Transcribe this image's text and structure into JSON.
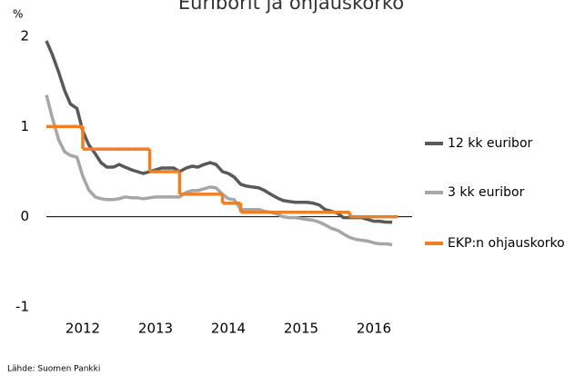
{
  "chart_data": {
    "type": "line",
    "title": "Euriborit ja ohjauskorko",
    "y_label": "%",
    "source": "Lähde: Suomen Pankki",
    "x": [
      2012.0,
      2012.08,
      2012.17,
      2012.25,
      2012.33,
      2012.42,
      2012.5,
      2012.58,
      2012.67,
      2012.75,
      2012.83,
      2012.92,
      2013.0,
      2013.08,
      2013.17,
      2013.25,
      2013.33,
      2013.42,
      2013.5,
      2013.58,
      2013.67,
      2013.75,
      2013.83,
      2013.92,
      2014.0,
      2014.08,
      2014.17,
      2014.25,
      2014.33,
      2014.42,
      2014.5,
      2014.58,
      2014.67,
      2014.75,
      2014.83,
      2014.92,
      2015.0,
      2015.08,
      2015.17,
      2015.25,
      2015.33,
      2015.42,
      2015.5,
      2015.58,
      2015.67,
      2015.75,
      2015.83,
      2015.92,
      2016.0,
      2016.08,
      2016.17,
      2016.25,
      2016.33,
      2016.42,
      2016.5,
      2016.58,
      2016.67,
      2016.75
    ],
    "series": [
      {
        "name": "12 kk euribor",
        "color": "#595959",
        "values": [
          1.95,
          1.8,
          1.6,
          1.4,
          1.25,
          1.2,
          0.95,
          0.8,
          0.7,
          0.6,
          0.55,
          0.55,
          0.58,
          0.55,
          0.52,
          0.5,
          0.48,
          0.5,
          0.52,
          0.54,
          0.54,
          0.54,
          0.5,
          0.54,
          0.56,
          0.55,
          0.58,
          0.6,
          0.58,
          0.5,
          0.48,
          0.44,
          0.36,
          0.34,
          0.33,
          0.32,
          0.29,
          0.25,
          0.21,
          0.18,
          0.17,
          0.16,
          0.16,
          0.16,
          0.15,
          0.13,
          0.08,
          0.06,
          0.04,
          -0.01,
          -0.01,
          -0.01,
          -0.01,
          -0.03,
          -0.05,
          -0.05,
          -0.06,
          -0.06
        ]
      },
      {
        "name": "3 kk euribor",
        "color": "#a6a6a6",
        "values": [
          1.35,
          1.1,
          0.85,
          0.72,
          0.68,
          0.66,
          0.45,
          0.3,
          0.22,
          0.2,
          0.19,
          0.19,
          0.2,
          0.22,
          0.21,
          0.21,
          0.2,
          0.21,
          0.22,
          0.22,
          0.22,
          0.22,
          0.22,
          0.27,
          0.29,
          0.29,
          0.31,
          0.33,
          0.32,
          0.25,
          0.2,
          0.19,
          0.08,
          0.08,
          0.08,
          0.08,
          0.06,
          0.05,
          0.03,
          0.0,
          -0.01,
          -0.01,
          -0.02,
          -0.03,
          -0.04,
          -0.06,
          -0.09,
          -0.13,
          -0.15,
          -0.19,
          -0.23,
          -0.25,
          -0.26,
          -0.27,
          -0.29,
          -0.3,
          -0.3,
          -0.31
        ]
      },
      {
        "name": "EKP:n ohjauskorko",
        "color": "#f07f22",
        "step": true,
        "values": [
          1,
          1,
          1,
          1,
          1,
          1,
          0.75,
          0.75,
          0.75,
          0.75,
          0.75,
          0.75,
          0.75,
          0.75,
          0.75,
          0.75,
          0.75,
          0.5,
          0.5,
          0.5,
          0.5,
          0.5,
          0.25,
          0.25,
          0.25,
          0.25,
          0.25,
          0.25,
          0.25,
          0.15,
          0.15,
          0.15,
          0.05,
          0.05,
          0.05,
          0.05,
          0.05,
          0.05,
          0.05,
          0.05,
          0.05,
          0.05,
          0.05,
          0.05,
          0.05,
          0.05,
          0.05,
          0.05,
          0.05,
          0.05,
          0,
          0,
          0,
          0,
          0,
          0,
          0,
          0
        ]
      }
    ],
    "xlim": [
      2012,
      2017
    ],
    "xticks": [
      {
        "value": 2012.5,
        "label": "2012"
      },
      {
        "value": 2013.5,
        "label": "2013"
      },
      {
        "value": 2014.5,
        "label": "2014"
      },
      {
        "value": 2015.5,
        "label": "2015"
      },
      {
        "value": 2016.5,
        "label": "2016"
      }
    ],
    "ylim": [
      -1,
      2
    ],
    "yticks": [
      -1,
      0,
      1,
      2
    ],
    "grid": false,
    "legend": "right"
  }
}
